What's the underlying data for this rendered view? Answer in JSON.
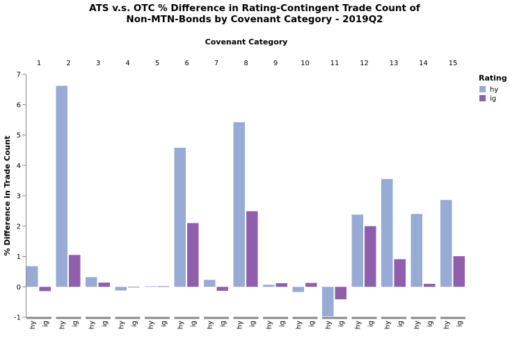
{
  "chart_data": {
    "type": "bar",
    "title": "ATS v.s. OTC % Difference in Rating-Contingent Trade Count of Non-MTN-Bonds by Covenant Category - 2019Q2",
    "title_lines": [
      "ATS v.s. OTC % Difference in Rating-Contingent Trade Count of",
      "Non-MTN-Bonds by Covenant Category - 2019Q2"
    ],
    "facet_label": "Covenant Category",
    "ylabel": "% Difference in Trade Count",
    "ylim": [
      -1,
      7
    ],
    "yticks": [
      -1,
      0,
      1,
      2,
      3,
      4,
      5,
      6,
      7
    ],
    "categories": [
      "1",
      "2",
      "3",
      "4",
      "5",
      "6",
      "7",
      "8",
      "9",
      "10",
      "11",
      "12",
      "13",
      "14",
      "15"
    ],
    "subcategories": [
      "hy",
      "ig"
    ],
    "legend": {
      "title": "Rating",
      "position": "top-right"
    },
    "series": [
      {
        "name": "hy",
        "color": "#98abd4",
        "values": [
          0.68,
          6.62,
          0.32,
          -0.12,
          0.02,
          4.58,
          0.23,
          5.42,
          0.07,
          -0.17,
          -0.97,
          2.38,
          3.55,
          2.4,
          2.86
        ]
      },
      {
        "name": "ig",
        "color": "#8f5fad",
        "values": [
          -0.14,
          1.05,
          0.14,
          0.0,
          0.02,
          2.1,
          -0.13,
          2.49,
          0.12,
          0.13,
          -0.41,
          2.0,
          0.91,
          0.1,
          1.01
        ]
      }
    ],
    "grid": false
  }
}
